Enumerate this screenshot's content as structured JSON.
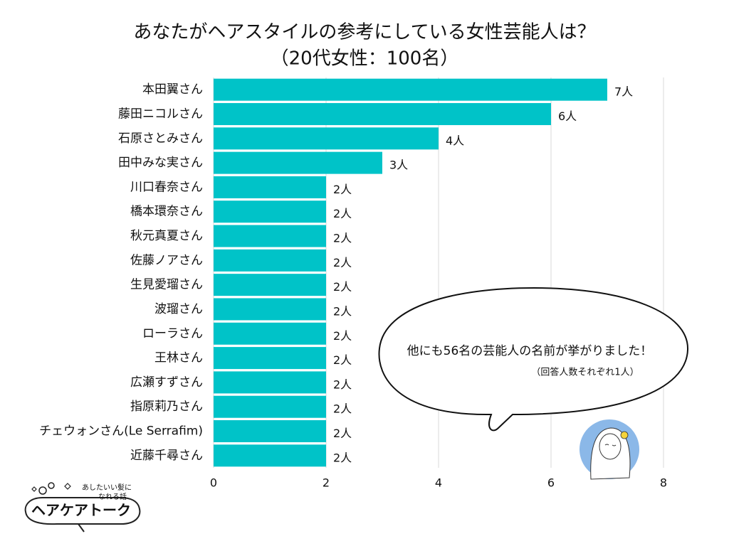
{
  "chart_data": {
    "type": "bar",
    "orientation": "horizontal",
    "title": "あなたがヘアスタイルの参考にしている女性芸能人は？",
    "subtitle": "（20代女性：100名）",
    "categories": [
      "本田翼さん",
      "藤田ニコルさん",
      "石原さとみさん",
      "田中みな実さん",
      "川口春奈さん",
      "橋本環奈さん",
      "秋元真夏さん",
      "佐藤ノアさん",
      "生見愛瑠さん",
      "波瑠さん",
      "ローラさん",
      "王林さん",
      "広瀬すずさん",
      "指原莉乃さん",
      "チェウォンさん(Le Serrafim)",
      "近藤千尋さん"
    ],
    "values": [
      7,
      6,
      4,
      3,
      2,
      2,
      2,
      2,
      2,
      2,
      2,
      2,
      2,
      2,
      2,
      2
    ],
    "value_labels": [
      "7人",
      "6人",
      "4人",
      "3人",
      "2人",
      "2人",
      "2人",
      "2人",
      "2人",
      "2人",
      "2人",
      "2人",
      "2人",
      "2人",
      "2人",
      "2人"
    ],
    "color": "#00c3c8",
    "xlim": [
      0,
      8
    ],
    "xticks": [
      0,
      2,
      4,
      6,
      8
    ],
    "grid": true,
    "annotations": [
      "他にも56名の芸能人の名前が挙がりました！",
      "（回答人数それぞれ1人）"
    ]
  },
  "logo": {
    "tagline": [
      "あしたいい髪に",
      "なれる話"
    ],
    "name": "ヘアケアトーク"
  }
}
